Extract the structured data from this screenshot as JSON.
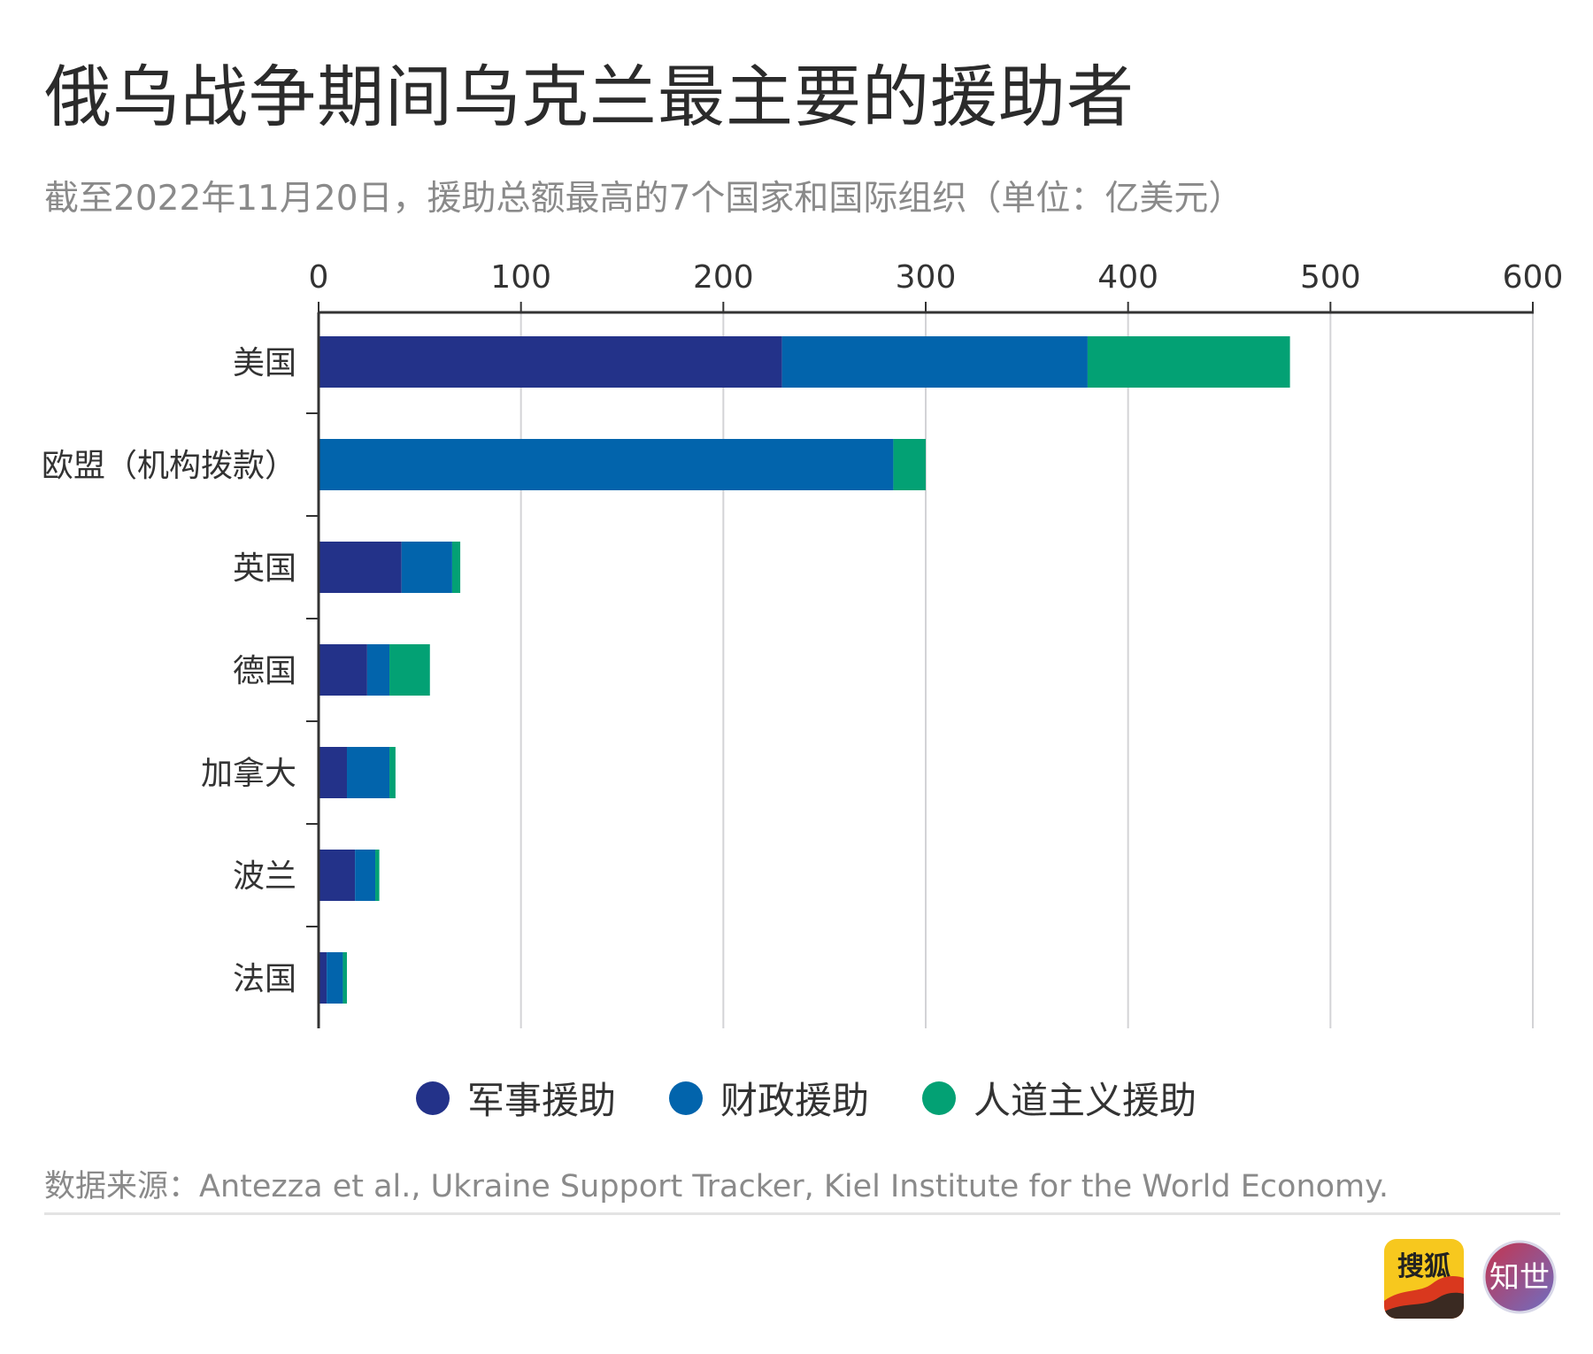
{
  "title": "俄乌战争期间乌克兰最主要的援助者",
  "subtitle": "截至2022年11月20日，援助总额最高的7个国家和国际组织（单位：亿美元）",
  "source": "数据来源：Antezza et al., Ukraine Support Tracker, Kiel Institute for the World Economy.",
  "logos": {
    "sohu_text": "搜狐",
    "zhishi_text": "知世"
  },
  "legend": [
    {
      "label": "军事援助",
      "color": "#233289"
    },
    {
      "label": "财政援助",
      "color": "#0264AC"
    },
    {
      "label": "人道主义援助",
      "color": "#03A174"
    }
  ],
  "chart_data": {
    "type": "bar",
    "orientation": "horizontal",
    "stacked": true,
    "xlim": [
      0,
      600
    ],
    "xticks": [
      0,
      100,
      200,
      300,
      400,
      500,
      600
    ],
    "axis_position": "top",
    "grid": true,
    "legend_position": "bottom",
    "categories": [
      "美国",
      "欧盟（机构拨款）",
      "英国",
      "德国",
      "加拿大",
      "波兰",
      "法国"
    ],
    "series": [
      {
        "name": "军事援助",
        "color": "#233289",
        "values": [
          229,
          0,
          41,
          24,
          14,
          18,
          4
        ]
      },
      {
        "name": "财政援助",
        "color": "#0264AC",
        "values": [
          151,
          284,
          25,
          11,
          21,
          10,
          8
        ]
      },
      {
        "name": "人道主义援助",
        "color": "#03A174",
        "values": [
          100,
          16,
          4,
          20,
          3,
          2,
          2
        ]
      }
    ]
  }
}
